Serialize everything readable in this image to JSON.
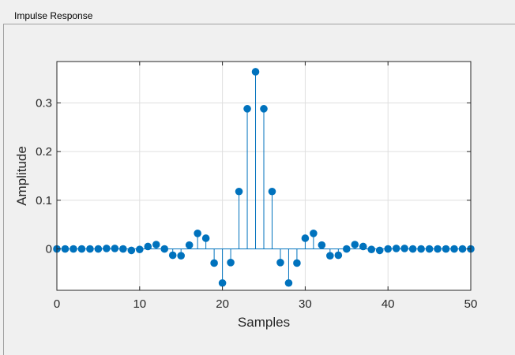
{
  "panel": {
    "title": "Impulse Response"
  },
  "chart_data": {
    "type": "stem",
    "title": "",
    "xlabel": "Samples",
    "ylabel": "Amplitude",
    "xlim": [
      0,
      50
    ],
    "ylim": [
      -0.085,
      0.385
    ],
    "xticks": [
      0,
      10,
      20,
      30,
      40,
      50
    ],
    "yticks": [
      0,
      0.1,
      0.2,
      0.3
    ],
    "xtick_labels": [
      "0",
      "10",
      "20",
      "30",
      "40",
      "50"
    ],
    "ytick_labels": [
      "0",
      "0.1",
      "0.2",
      "0.3"
    ],
    "grid": true,
    "series_color": "#0072bd",
    "x": [
      0,
      1,
      2,
      3,
      4,
      5,
      6,
      7,
      8,
      9,
      10,
      11,
      12,
      13,
      14,
      15,
      16,
      17,
      18,
      19,
      20,
      21,
      22,
      23,
      24,
      25,
      26,
      27,
      28,
      29,
      30,
      31,
      32,
      33,
      34,
      35,
      36,
      37,
      38,
      39,
      40,
      41,
      42,
      43,
      44,
      45,
      46,
      47,
      48,
      49,
      50
    ],
    "y": [
      0,
      0,
      0,
      0,
      0,
      0,
      0.001,
      0.001,
      0,
      -0.003,
      -0.001,
      0.005,
      0.009,
      0,
      -0.013,
      -0.014,
      0.008,
      0.032,
      0.022,
      -0.029,
      -0.07,
      -0.028,
      0.118,
      0.288,
      0.364,
      0.288,
      0.118,
      -0.028,
      -0.07,
      -0.029,
      0.022,
      0.032,
      0.008,
      -0.014,
      -0.013,
      0,
      0.009,
      0.005,
      -0.001,
      -0.003,
      0,
      0.001,
      0.001,
      0,
      0,
      0,
      0,
      0,
      0,
      0,
      0
    ]
  }
}
